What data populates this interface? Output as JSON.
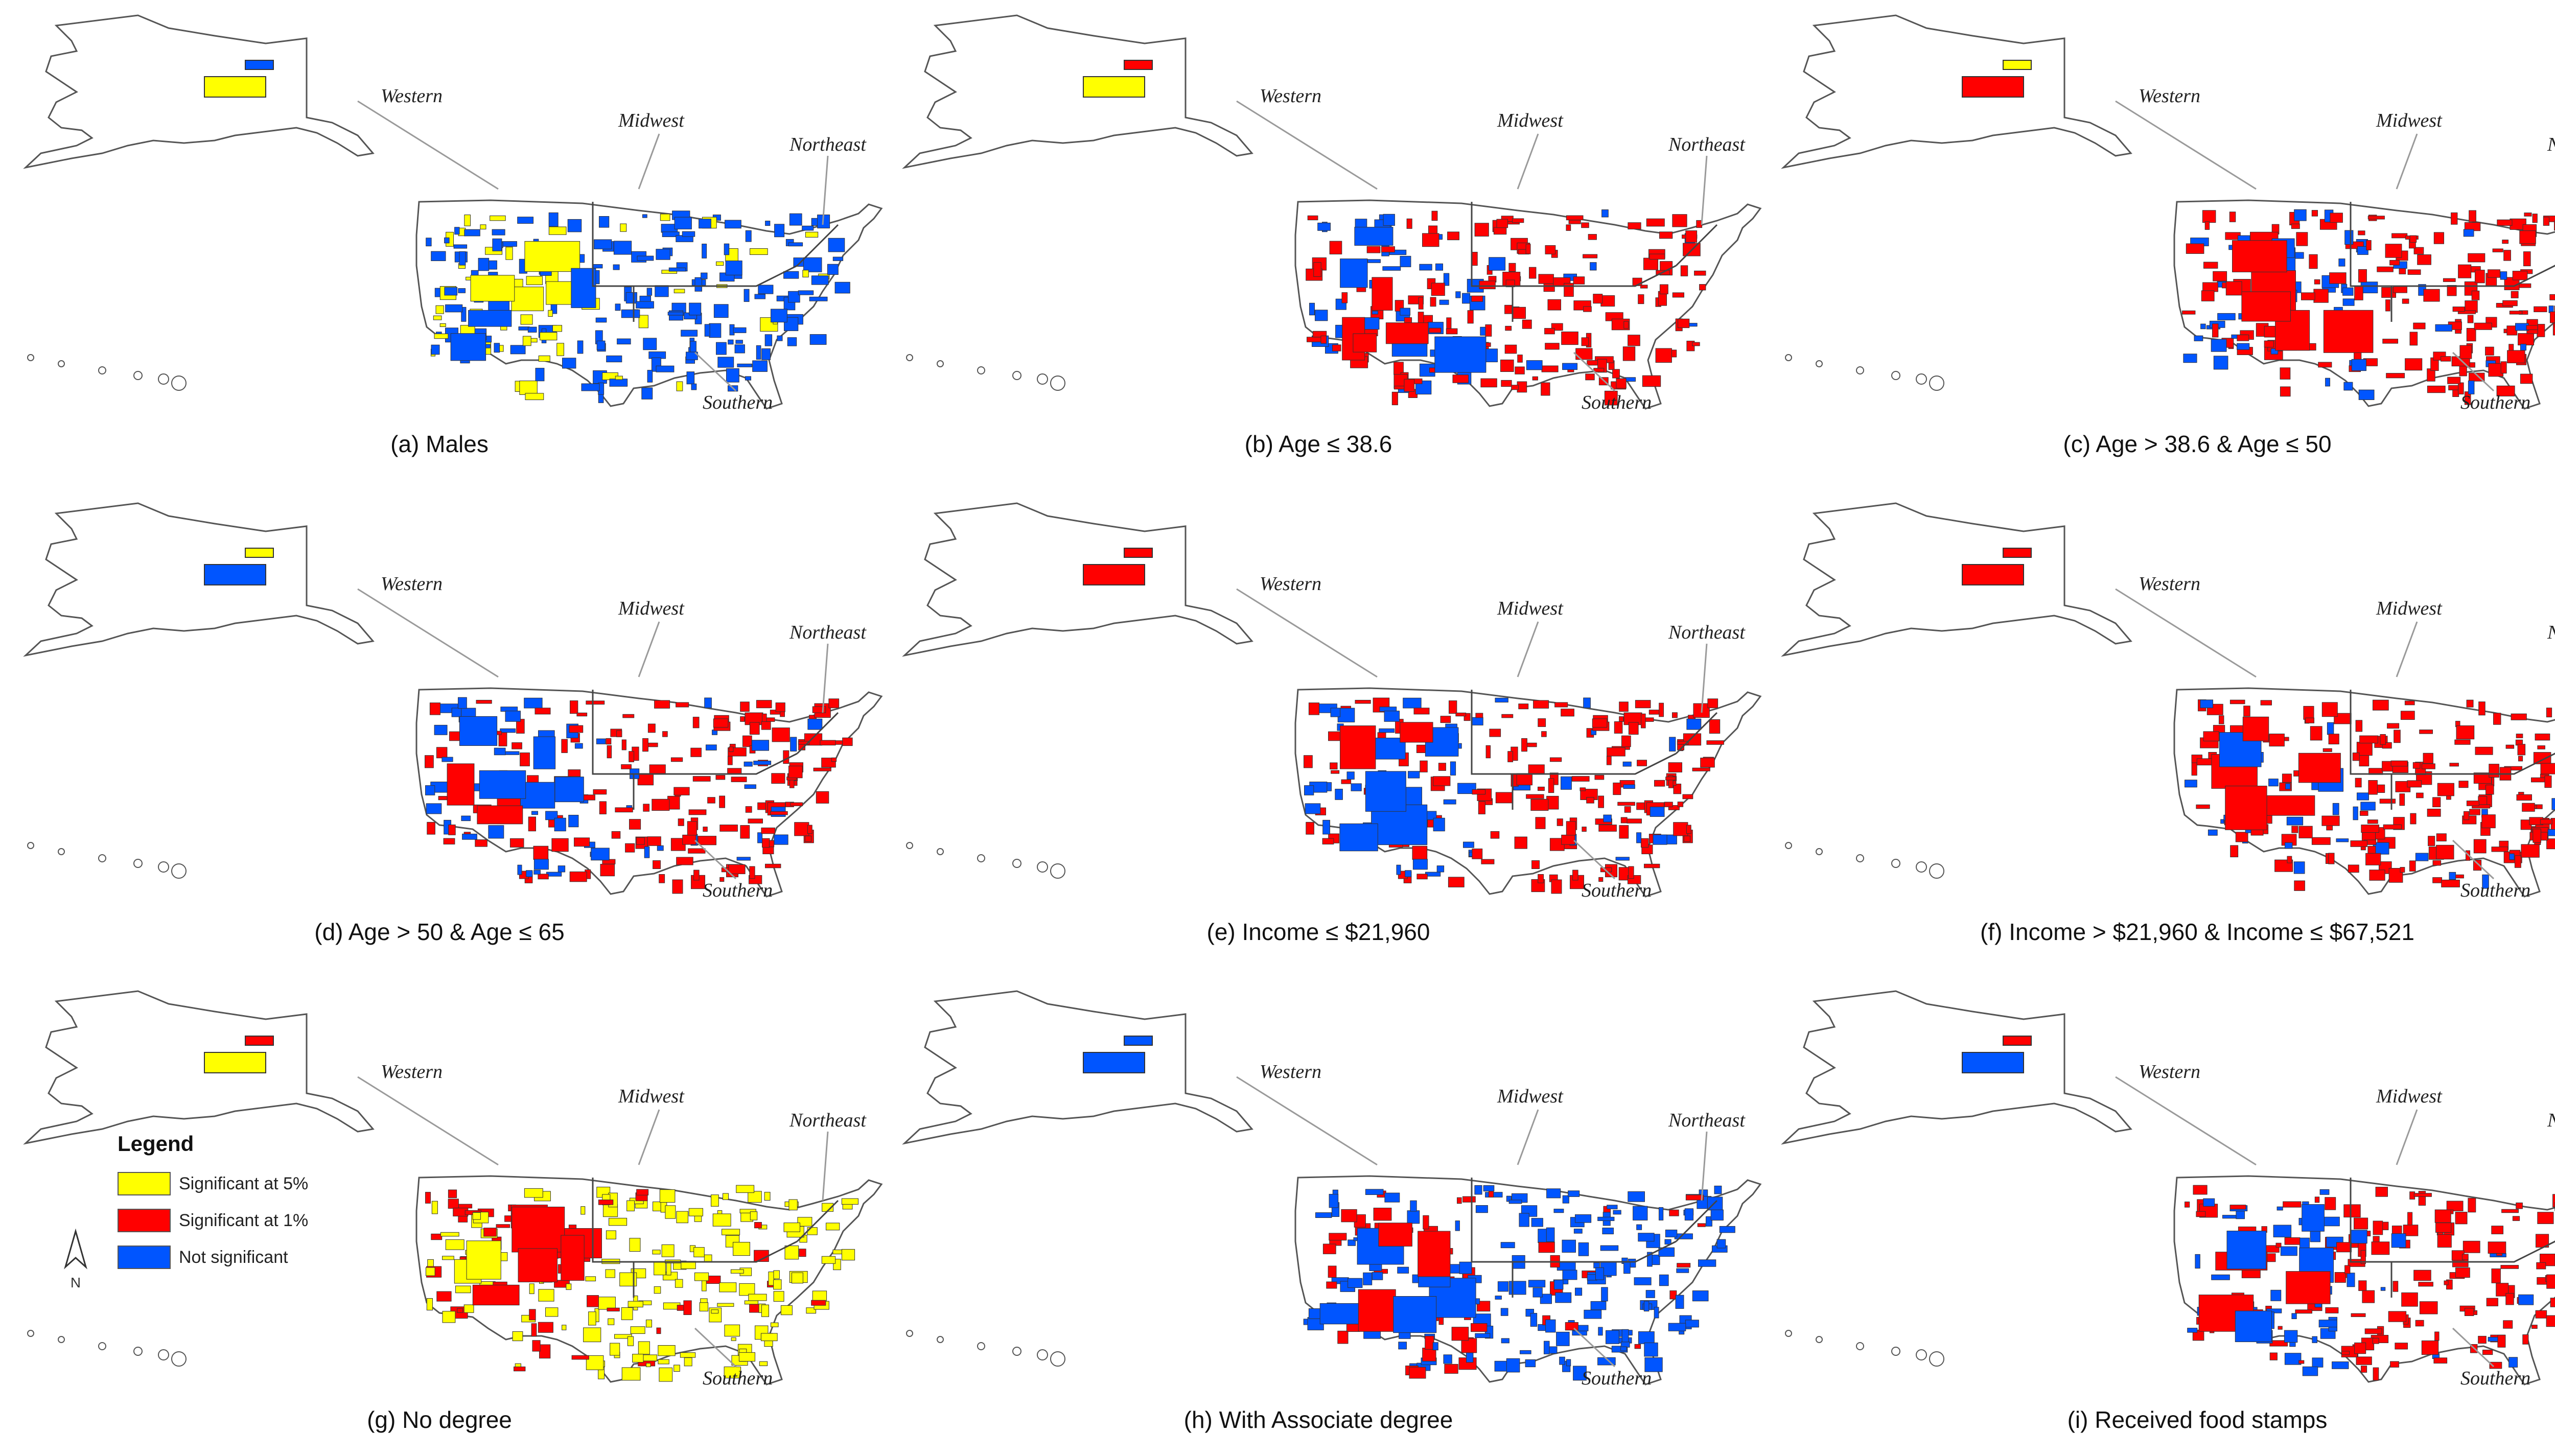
{
  "colors": {
    "significant_5": "#ffff00",
    "significant_1": "#ff0000",
    "not_significant": "#0055ff"
  },
  "region_labels": {
    "western": "Western",
    "midwest": "Midwest",
    "northeast": "Northeast",
    "southern": "Southern"
  },
  "panels": [
    {
      "caption": "(a) Males",
      "dominant": "blue",
      "secondary": "yellow",
      "alaska": [
        "yellow",
        "blue"
      ]
    },
    {
      "caption": "(b) Age ≤ 38.6",
      "dominant": "red",
      "secondary": "blue",
      "alaska": [
        "yellow",
        "red"
      ]
    },
    {
      "caption": "(c) Age > 38.6 & Age ≤ 50",
      "dominant": "red",
      "secondary": "blue",
      "alaska": [
        "red",
        "yellow"
      ]
    },
    {
      "caption": "(d) Age > 50 & Age ≤ 65",
      "dominant": "red",
      "secondary": "blue",
      "alaska": [
        "blue",
        "yellow"
      ]
    },
    {
      "caption": "(e) Income ≤ $21,960",
      "dominant": "red",
      "secondary": "blue",
      "alaska": [
        "red",
        "red"
      ]
    },
    {
      "caption": "(f) Income > $21,960 & Income ≤ $67,521",
      "dominant": "red",
      "secondary": "blue",
      "alaska": [
        "red",
        "red"
      ]
    },
    {
      "caption": "(g) No degree",
      "dominant": "yellow",
      "secondary": "red",
      "alaska": [
        "yellow",
        "red"
      ]
    },
    {
      "caption": "(h) With Associate degree",
      "dominant": "blue",
      "secondary": "red",
      "alaska": [
        "blue",
        "blue"
      ]
    },
    {
      "caption": "(i) Received food stamps",
      "dominant": "red",
      "secondary": "blue",
      "alaska": [
        "blue",
        "red"
      ]
    }
  ],
  "legend": {
    "title": "Legend",
    "items": [
      {
        "label": "Significant at 5%",
        "color": "#ffff00"
      },
      {
        "label": "Significant at 1%",
        "color": "#ff0000"
      },
      {
        "label": "Not significant",
        "color": "#0055ff"
      }
    ],
    "north_label": "N"
  }
}
